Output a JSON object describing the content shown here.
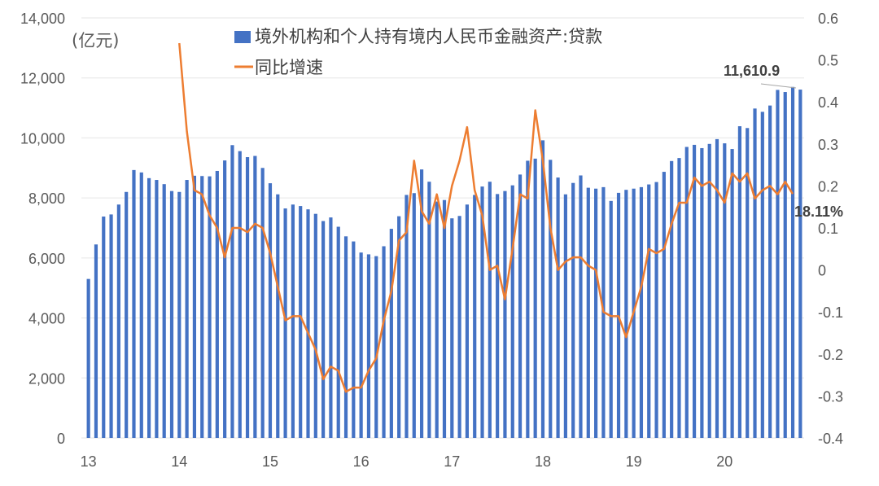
{
  "chart_data": {
    "type": "bar+line",
    "unit_label": "(亿元)",
    "series": [
      {
        "name": "境外机构和个人持有境内人民币金融资产:贷款",
        "type": "bar",
        "axis": "left",
        "color": "#4472C4",
        "values": [
          5300,
          6450,
          7380,
          7450,
          7780,
          8200,
          8930,
          8850,
          8660,
          8600,
          8460,
          8230,
          8200,
          8600,
          8740,
          8730,
          8720,
          8900,
          9250,
          9760,
          9560,
          9360,
          9400,
          9000,
          8490,
          8120,
          7650,
          7780,
          7730,
          7620,
          7470,
          7230,
          7350,
          7040,
          6720,
          6550,
          6180,
          6120,
          6060,
          6390,
          6970,
          7390,
          8100,
          8160,
          8950,
          8540,
          7880,
          7930,
          7320,
          7400,
          7780,
          8100,
          8380,
          8540,
          8130,
          8230,
          8420,
          8780,
          9240,
          9310,
          9920,
          9270,
          8680,
          8120,
          8500,
          8750,
          8340,
          8310,
          8360,
          7900,
          8170,
          8270,
          8310,
          8360,
          8450,
          8530,
          8870,
          9230,
          9330,
          9700,
          9770,
          9660,
          9800,
          9960,
          9820,
          9630,
          10390,
          10330,
          10980,
          10870,
          11080,
          11600,
          11530,
          11700,
          11610.9
        ]
      },
      {
        "name": "同比增速",
        "type": "line",
        "axis": "right",
        "color": "#ED7D31",
        "start_index": 12,
        "values": [
          0.54,
          0.33,
          0.19,
          0.18,
          0.13,
          0.1,
          0.03,
          0.1,
          0.1,
          0.09,
          0.11,
          0.1,
          0.04,
          -0.04,
          -0.12,
          -0.11,
          -0.11,
          -0.15,
          -0.19,
          -0.26,
          -0.23,
          -0.24,
          -0.29,
          -0.28,
          -0.28,
          -0.24,
          -0.21,
          -0.12,
          -0.05,
          0.07,
          0.09,
          0.26,
          0.14,
          0.11,
          0.18,
          0.1,
          0.2,
          0.26,
          0.34,
          0.19,
          0.13,
          0.0,
          0.01,
          -0.07,
          0.05,
          0.18,
          0.17,
          0.38,
          0.26,
          0.1,
          0.0,
          0.02,
          0.03,
          0.03,
          0.01,
          0.0,
          -0.1,
          -0.11,
          -0.11,
          -0.16,
          -0.1,
          -0.04,
          0.05,
          0.04,
          0.05,
          0.11,
          0.16,
          0.16,
          0.22,
          0.2,
          0.21,
          0.19,
          0.16,
          0.23,
          0.21,
          0.23,
          0.17,
          0.19,
          0.2,
          0.18,
          0.21,
          0.1811
        ]
      }
    ],
    "x_tick_labels": [
      "13",
      "14",
      "15",
      "16",
      "17",
      "18",
      "19",
      "20"
    ],
    "left_axis": {
      "ylim": [
        0,
        14000
      ],
      "ticks": [
        "0",
        "2,000",
        "4,000",
        "6,000",
        "8,000",
        "10,000",
        "12,000",
        "14,000"
      ]
    },
    "right_axis": {
      "ylim": [
        -0.4,
        0.6
      ],
      "ticks": [
        "-0.4",
        "-0.3",
        "-0.2",
        "-0.1",
        "0",
        "0.1",
        "0.2",
        "0.3",
        "0.4",
        "0.5",
        "0.6"
      ]
    },
    "annotations": {
      "last_bar_label": "11,610.9",
      "last_line_label": "18.11%"
    },
    "grid": "horizontal",
    "legend": "top-center"
  }
}
